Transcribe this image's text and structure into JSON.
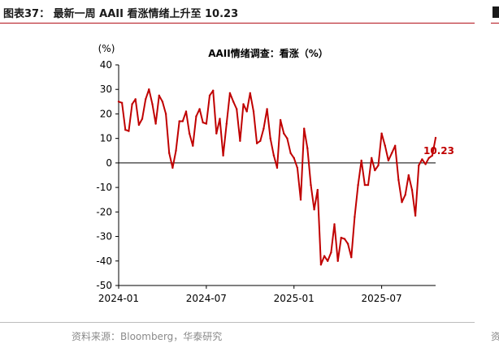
{
  "figure": {
    "title": "图表37：  最新一周 AAII 看涨情绪上升至 10.23",
    "source": "资料来源：Bloomberg，华泰研究",
    "edge_glyph": "资"
  },
  "chart_data": {
    "type": "line",
    "title": "AAII情绪调查：看涨（%）",
    "ylabel": "(%)",
    "xlabel": "",
    "ylim": [
      -50,
      40
    ],
    "yticks": [
      40,
      30,
      20,
      10,
      0,
      -10,
      -20,
      -30,
      -40,
      -50
    ],
    "xlim": [
      "2024-01-04",
      "2025-10-23"
    ],
    "xticks": [
      {
        "date": "2024-01-04",
        "label": "2024-01"
      },
      {
        "date": "2024-07-04",
        "label": "2024-07"
      },
      {
        "date": "2025-01-02",
        "label": "2025-01"
      },
      {
        "date": "2025-07-03",
        "label": "2025-07"
      }
    ],
    "grid": false,
    "line_color": "#c00000",
    "annotation": {
      "text": "10.23",
      "date": "2025-10-23",
      "value": 10.23
    },
    "series": [
      {
        "name": "",
        "points": [
          [
            "2024-01-04",
            25
          ],
          [
            "2024-01-11",
            24.5
          ],
          [
            "2024-01-18",
            13.5
          ],
          [
            "2024-01-25",
            13
          ],
          [
            "2024-02-01",
            24
          ],
          [
            "2024-02-08",
            26
          ],
          [
            "2024-02-15",
            15.5
          ],
          [
            "2024-02-22",
            18
          ],
          [
            "2024-02-29",
            26
          ],
          [
            "2024-03-07",
            30
          ],
          [
            "2024-03-14",
            24
          ],
          [
            "2024-03-21",
            16
          ],
          [
            "2024-03-28",
            27.5
          ],
          [
            "2024-04-04",
            25
          ],
          [
            "2024-04-11",
            20
          ],
          [
            "2024-04-18",
            4
          ],
          [
            "2024-04-25",
            -2
          ],
          [
            "2024-05-02",
            5
          ],
          [
            "2024-05-09",
            17
          ],
          [
            "2024-05-16",
            17
          ],
          [
            "2024-05-23",
            21
          ],
          [
            "2024-05-30",
            12
          ],
          [
            "2024-06-06",
            7
          ],
          [
            "2024-06-13",
            19
          ],
          [
            "2024-06-20",
            22
          ],
          [
            "2024-06-27",
            16.5
          ],
          [
            "2024-07-04",
            16
          ],
          [
            "2024-07-11",
            27.5
          ],
          [
            "2024-07-18",
            29.5
          ],
          [
            "2024-07-25",
            12
          ],
          [
            "2024-08-01",
            18
          ],
          [
            "2024-08-08",
            3
          ],
          [
            "2024-08-15",
            16
          ],
          [
            "2024-08-22",
            28.5
          ],
          [
            "2024-08-29",
            25
          ],
          [
            "2024-09-05",
            22
          ],
          [
            "2024-09-12",
            9
          ],
          [
            "2024-09-19",
            24
          ],
          [
            "2024-09-26",
            21
          ],
          [
            "2024-10-03",
            28.5
          ],
          [
            "2024-10-10",
            21
          ],
          [
            "2024-10-17",
            8
          ],
          [
            "2024-10-24",
            9
          ],
          [
            "2024-10-31",
            14
          ],
          [
            "2024-11-07",
            22
          ],
          [
            "2024-11-14",
            10
          ],
          [
            "2024-11-21",
            3
          ],
          [
            "2024-11-28",
            -2
          ],
          [
            "2024-12-05",
            17.5
          ],
          [
            "2024-12-12",
            12
          ],
          [
            "2024-12-19",
            10
          ],
          [
            "2024-12-26",
            4
          ],
          [
            "2025-01-02",
            2
          ],
          [
            "2025-01-09",
            -2
          ],
          [
            "2025-01-16",
            -15
          ],
          [
            "2025-01-23",
            14
          ],
          [
            "2025-01-30",
            6
          ],
          [
            "2025-02-06",
            -9
          ],
          [
            "2025-02-13",
            -19
          ],
          [
            "2025-02-20",
            -11
          ],
          [
            "2025-02-27",
            -41.5
          ],
          [
            "2025-03-06",
            -38
          ],
          [
            "2025-03-13",
            -40
          ],
          [
            "2025-03-20",
            -36.5
          ],
          [
            "2025-03-27",
            -25
          ],
          [
            "2025-04-03",
            -40
          ],
          [
            "2025-04-10",
            -30.5
          ],
          [
            "2025-04-17",
            -31
          ],
          [
            "2025-04-24",
            -33
          ],
          [
            "2025-05-01",
            -38.5
          ],
          [
            "2025-05-08",
            -22
          ],
          [
            "2025-05-15",
            -9
          ],
          [
            "2025-05-22",
            1
          ],
          [
            "2025-05-29",
            -9
          ],
          [
            "2025-06-05",
            -9
          ],
          [
            "2025-06-12",
            2
          ],
          [
            "2025-06-19",
            -3
          ],
          [
            "2025-06-26",
            -1
          ],
          [
            "2025-07-03",
            12
          ],
          [
            "2025-07-10",
            7
          ],
          [
            "2025-07-17",
            1
          ],
          [
            "2025-07-24",
            4
          ],
          [
            "2025-07-31",
            7
          ],
          [
            "2025-08-07",
            -7
          ],
          [
            "2025-08-14",
            -16
          ],
          [
            "2025-08-21",
            -13
          ],
          [
            "2025-08-28",
            -5
          ],
          [
            "2025-09-04",
            -11
          ],
          [
            "2025-09-11",
            -21.5
          ],
          [
            "2025-09-18",
            -1
          ],
          [
            "2025-09-25",
            1.5
          ],
          [
            "2025-10-02",
            -0.5
          ],
          [
            "2025-10-09",
            2
          ],
          [
            "2025-10-16",
            3
          ],
          [
            "2025-10-23",
            10.23
          ]
        ]
      }
    ]
  }
}
